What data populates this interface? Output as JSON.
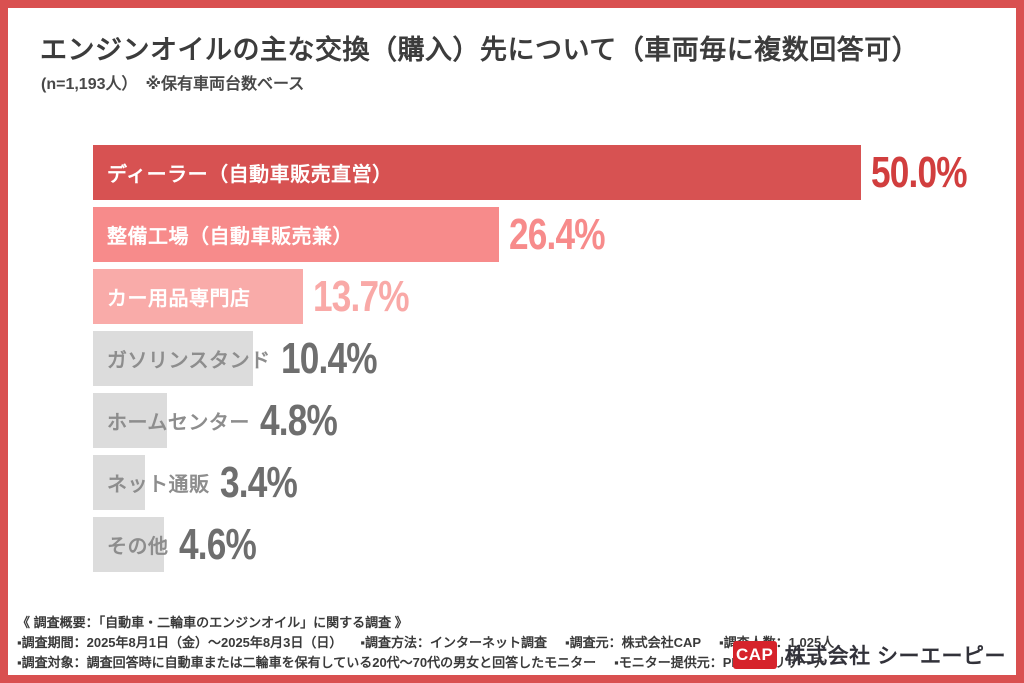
{
  "frame": {
    "border_color": "#d95050",
    "background": "#ffffff"
  },
  "header": {
    "title": "エンジンオイルの主な交換（購入）先について（車両毎に複数回答可）",
    "subtitle": "(n=1,193人）　※保有車両台数ベース"
  },
  "chart_data": {
    "type": "bar",
    "orientation": "horizontal",
    "title": "エンジンオイルの主な交換（購入）先について（車両毎に複数回答可）",
    "sample_note": "(n=1,193人）",
    "base_note": "※保有車両台数ベース",
    "unit": "%",
    "xlim": [
      0,
      50
    ],
    "grid": false,
    "legend": false,
    "categories": [
      "ディーラー（自動車販売直営）",
      "整備工場（自動車販売兼）",
      "カー用品専門店",
      "ガソリンスタンド",
      "ホームセンター",
      "ネット通販",
      "その他"
    ],
    "values": [
      50.0,
      26.4,
      13.7,
      10.4,
      4.8,
      3.4,
      4.6
    ],
    "bars": [
      {
        "label": "ディーラー（自動車販売直営）",
        "value": 50.0,
        "display": "50.0%",
        "bar_color": "#d75252",
        "label_color": "#ffffff",
        "value_color": "#d13e3e"
      },
      {
        "label": "整備工場（自動車販売兼）",
        "value": 26.4,
        "display": "26.4%",
        "bar_color": "#f78b8b",
        "label_color": "#ffffff",
        "value_color": "#f78b8b"
      },
      {
        "label": "カー用品専門店",
        "value": 13.7,
        "display": "13.7%",
        "bar_color": "#f9aba9",
        "label_color": "#ffffff",
        "value_color": "#f9a9a7"
      },
      {
        "label": "ガソリンスタンド",
        "value": 10.4,
        "display": "10.4%",
        "bar_color": "#dcdcdc",
        "label_color": "#8d8d8d",
        "value_color": "#6e6e6e"
      },
      {
        "label": "ホームセンター",
        "value": 4.8,
        "display": "4.8%",
        "bar_color": "#dcdcdc",
        "label_color": "#8d8d8d",
        "value_color": "#6e6e6e"
      },
      {
        "label": "ネット通販",
        "value": 3.4,
        "display": "3.4%",
        "bar_color": "#dcdcdc",
        "label_color": "#8d8d8d",
        "value_color": "#6e6e6e"
      },
      {
        "label": "その他",
        "value": 4.6,
        "display": "4.6%",
        "bar_color": "#dcdcdc",
        "label_color": "#8d8d8d",
        "value_color": "#6e6e6e"
      }
    ]
  },
  "footer": {
    "heading": "《 調査概要：「自動車・二輪車のエンジンオイル」に関する調査 》",
    "line2": [
      "▪調査期間：2025年8月1日（金）～2025年8月3日（日）",
      "▪調査方法：インターネット調査",
      "▪調査元：株式会社CAP",
      "▪調査人数：1,025人"
    ],
    "line3": [
      "▪調査対象：調査回答時に自動車または二輪車を保有している20代～70代の男女と回答したモニター",
      "▪モニター提供元：PRIZMAリサーチ"
    ]
  },
  "logo": {
    "mark": "CAP",
    "mark_bg": "#d6232b",
    "company": "株式会社 シーエーピー"
  }
}
